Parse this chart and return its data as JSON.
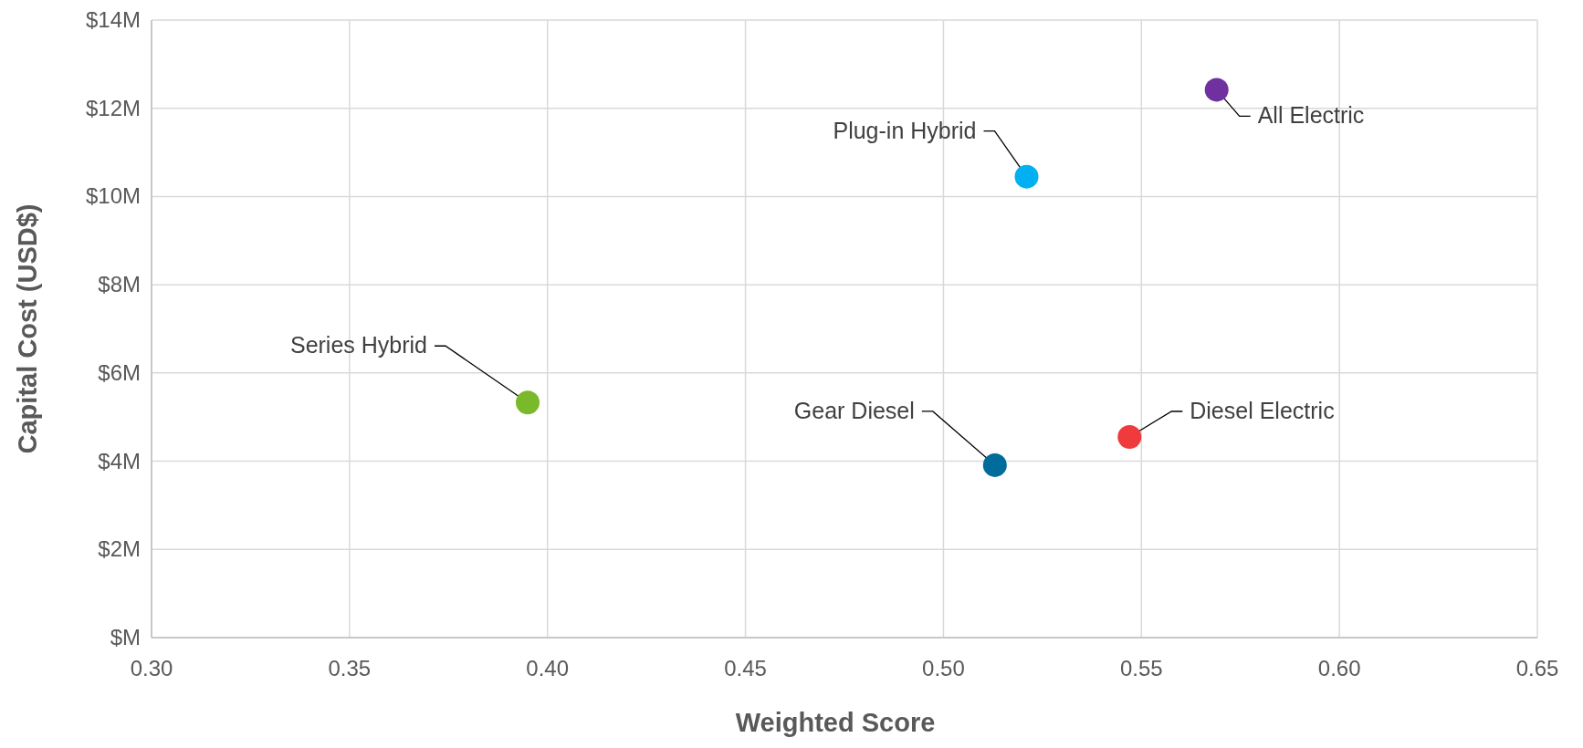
{
  "chart_data": {
    "type": "scatter",
    "xlabel": "Weighted Score",
    "ylabel": "Capital Cost (USD$)",
    "xlim": [
      0.3,
      0.65
    ],
    "xticks": [
      {
        "value": 0.3,
        "label": "0.30"
      },
      {
        "value": 0.35,
        "label": "0.35"
      },
      {
        "value": 0.4,
        "label": "0.40"
      },
      {
        "value": 0.45,
        "label": "0.45"
      },
      {
        "value": 0.5,
        "label": "0.50"
      },
      {
        "value": 0.55,
        "label": "0.55"
      },
      {
        "value": 0.6,
        "label": "0.60"
      },
      {
        "value": 0.65,
        "label": "0.65"
      }
    ],
    "ylim": [
      0,
      14
    ],
    "yticks": [
      {
        "value": 0,
        "label": "$M"
      },
      {
        "value": 2,
        "label": "$2M"
      },
      {
        "value": 4,
        "label": "$4M"
      },
      {
        "value": 6,
        "label": "$6M"
      },
      {
        "value": 8,
        "label": "$8M"
      },
      {
        "value": 10,
        "label": "$10M"
      },
      {
        "value": 12,
        "label": "$12M"
      },
      {
        "value": 14,
        "label": "$14M"
      }
    ],
    "grid": true,
    "marker": "circle",
    "series": [
      {
        "name": "All Electric",
        "color": "#7030a0",
        "x": [
          0.569
        ],
        "values": [
          12.42
        ]
      },
      {
        "name": "Plug-in Hybrid",
        "color": "#00b0f0",
        "x": [
          0.521
        ],
        "values": [
          10.45
        ]
      },
      {
        "name": "Series Hybrid",
        "color": "#7ab929",
        "x": [
          0.395
        ],
        "values": [
          5.33
        ]
      },
      {
        "name": "Gear Diesel",
        "color": "#006c9c",
        "x": [
          0.513
        ],
        "values": [
          3.91
        ]
      },
      {
        "name": "Diesel Electric",
        "color": "#ef3b3b",
        "x": [
          0.547
        ],
        "values": [
          4.55
        ]
      }
    ]
  }
}
